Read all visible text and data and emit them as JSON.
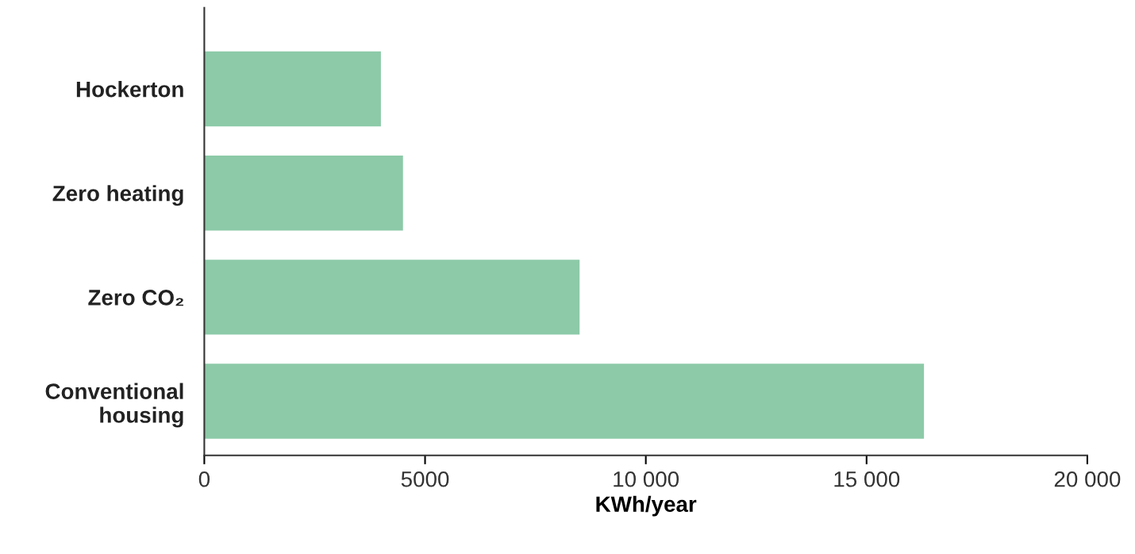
{
  "chart_data": {
    "type": "bar",
    "orientation": "horizontal",
    "xlabel": "KWh/year",
    "categories": [
      "Hockerton",
      "Zero heating",
      "Zero CO₂",
      "Conventional\nhousing"
    ],
    "values": [
      4000,
      4500,
      8500,
      16300
    ],
    "color": "#8ccaa8",
    "xlim": [
      0,
      20000
    ],
    "xticks": [
      0,
      5000,
      {
        "value": 10000,
        "label": "10 000"
      },
      {
        "value": 15000,
        "label": "15 000"
      },
      {
        "value": 20000,
        "label": "20 000"
      }
    ],
    "grid": false
  }
}
